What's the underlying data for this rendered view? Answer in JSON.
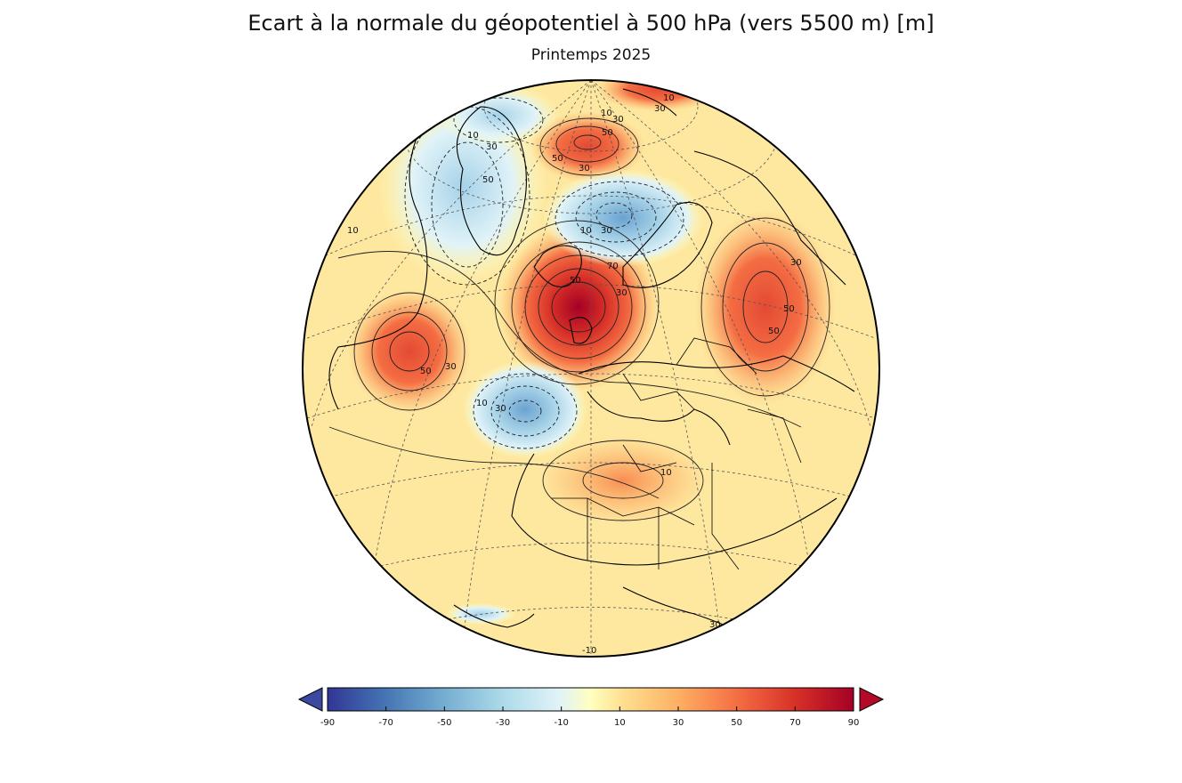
{
  "title": "Ecart à la normale du géopotentiel à 500 hPa (vers 5500 m)  [m]",
  "subtitle": "Printemps 2025",
  "colorbar": {
    "min": -90,
    "max": 90,
    "tick_labels": [
      "-90",
      "-70",
      "-50",
      "-30",
      "-10",
      "10",
      "30",
      "50",
      "70",
      "90"
    ],
    "extend": "both",
    "colors": {
      "low_arrow": "#3b4aa0",
      "high_arrow": "#b40a28"
    }
  },
  "contour_labels": [
    "10",
    "30",
    "50",
    "10",
    "30",
    "50",
    "30",
    "50",
    "10",
    "30",
    "50",
    "30",
    "10",
    "70",
    "50",
    "30",
    "10",
    "50",
    "30",
    "10",
    "30",
    "10",
    "50",
    "30",
    "30",
    "-10"
  ]
}
